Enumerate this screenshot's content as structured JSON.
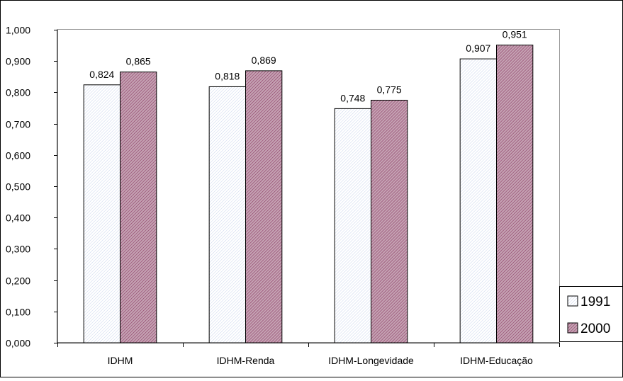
{
  "chart_data": {
    "type": "bar",
    "categories": [
      "IDHM",
      "IDHM-Renda",
      "IDHM-Longevidade",
      "IDHM-Educação"
    ],
    "series": [
      {
        "name": "1991",
        "values": [
          0.824,
          0.818,
          0.748,
          0.907
        ],
        "labels": [
          "0,824",
          "0,818",
          "0,748",
          "0,907"
        ],
        "fill": "#ffffff",
        "pattern_color": "#c9d4ec"
      },
      {
        "name": "2000",
        "values": [
          0.865,
          0.869,
          0.775,
          0.951
        ],
        "labels": [
          "0,865",
          "0,869",
          "0,775",
          "0,951"
        ],
        "fill": "#c5a2b3",
        "pattern_color": "#8c3a63"
      }
    ],
    "ylim": [
      0,
      1
    ],
    "yticks": [
      0,
      0.1,
      0.2,
      0.3,
      0.4,
      0.5,
      0.6,
      0.7,
      0.8,
      0.9,
      1.0
    ],
    "ytick_labels": [
      "0,000",
      "0,100",
      "0,200",
      "0,300",
      "0,400",
      "0,500",
      "0,600",
      "0,700",
      "0,800",
      "0,900",
      "1,000"
    ],
    "grid": false,
    "legend_position": "bottom-right",
    "title": "",
    "xlabel": "",
    "ylabel": ""
  }
}
